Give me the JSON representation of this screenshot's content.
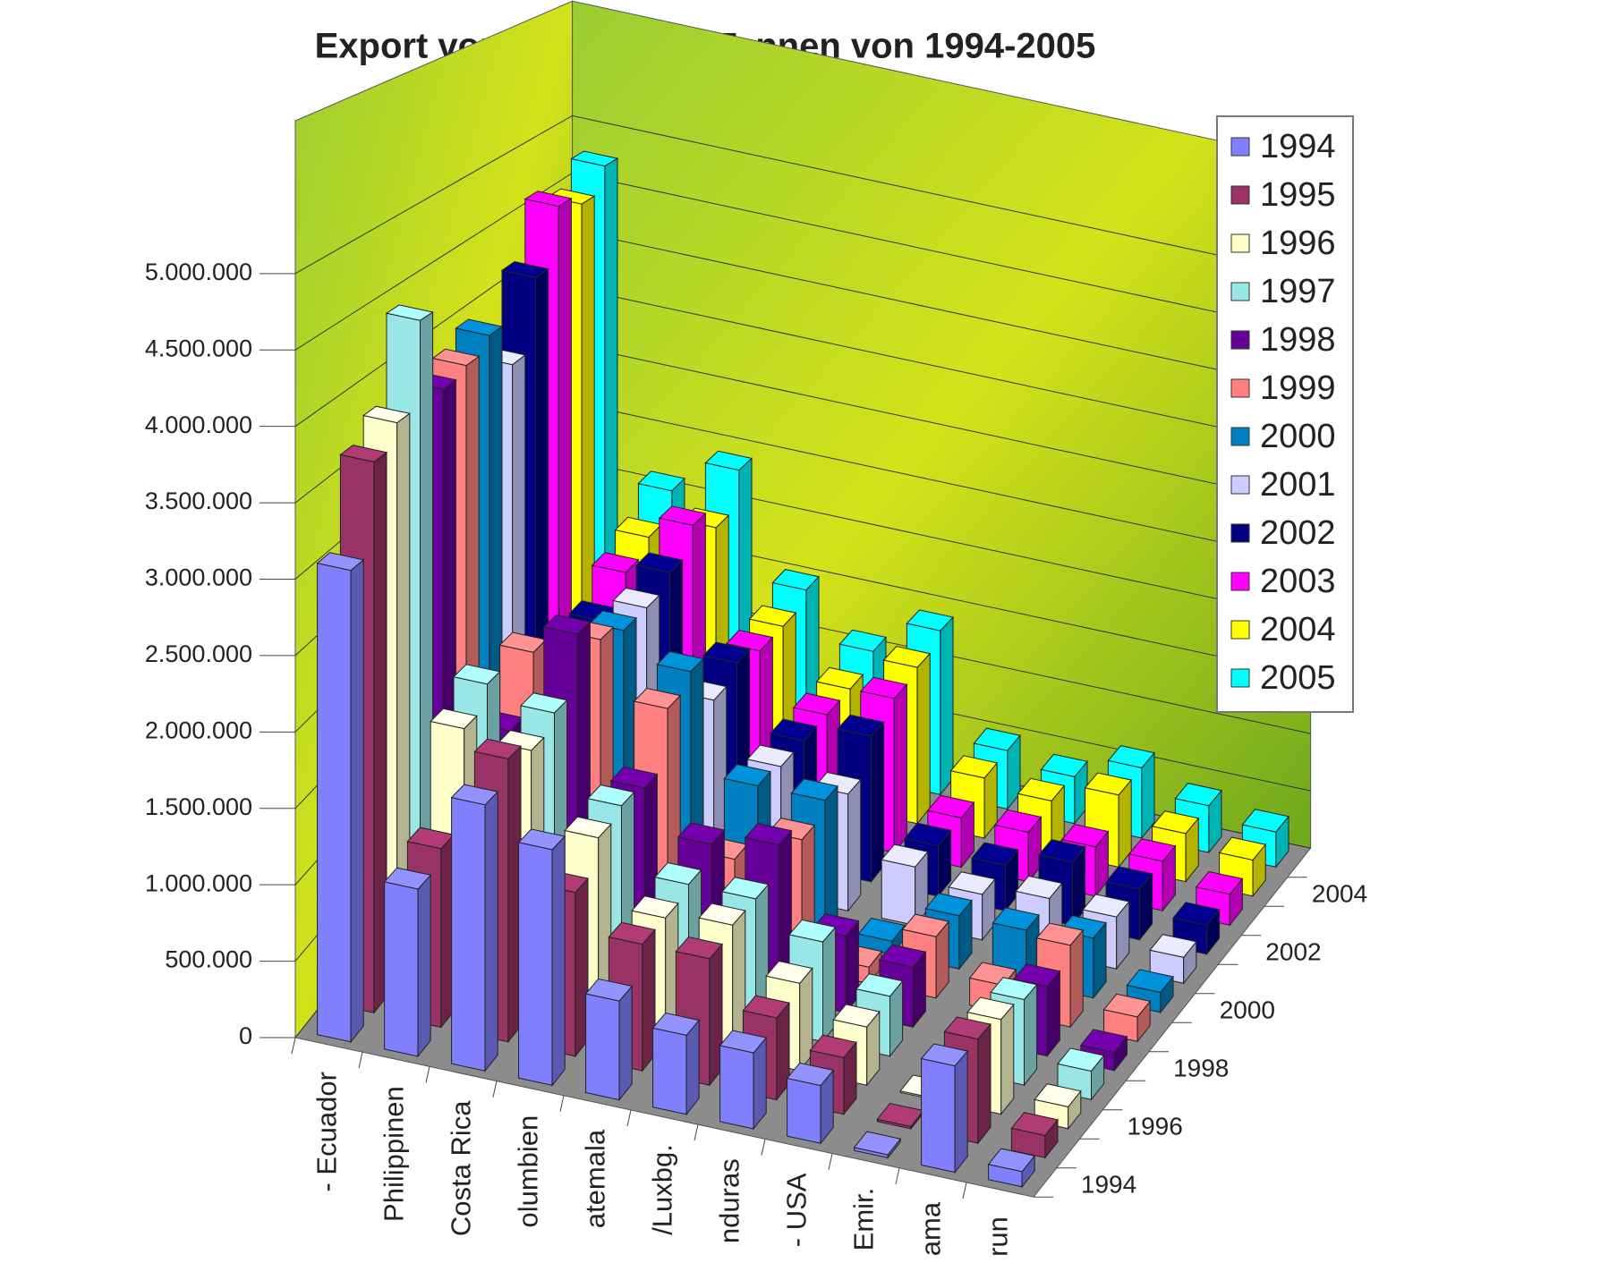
{
  "chart_data": {
    "type": "bar3d",
    "title": "Export von Bananen in Tonnen von 1994-2005",
    "categories": [
      "- Ecuador",
      "Philippinen",
      "Costa Rica",
      "olumbien",
      "atemala",
      "/Luxbg.",
      "nduras",
      "- USA",
      "Emir.",
      "ama",
      "run"
    ],
    "series": [
      {
        "name": "1994",
        "color": "#8080ff",
        "values": [
          3100000,
          1100000,
          1750000,
          1550000,
          650000,
          520000,
          500000,
          380000,
          20000,
          700000,
          100000
        ]
      },
      {
        "name": "1995",
        "color": "#993366",
        "values": [
          3700000,
          1200000,
          1900000,
          1100000,
          850000,
          850000,
          550000,
          380000,
          15000,
          700000,
          150000
        ]
      },
      {
        "name": "1996",
        "color": "#ffffcc",
        "values": [
          3850000,
          1850000,
          1800000,
          1300000,
          850000,
          900000,
          600000,
          400000,
          10000,
          650000,
          150000
        ]
      },
      {
        "name": "1997",
        "color": "#99e6e6",
        "values": [
          4450000,
          2000000,
          1900000,
          1350000,
          900000,
          900000,
          700000,
          420000,
          5000,
          600000,
          200000
        ]
      },
      {
        "name": "1998",
        "color": "#660099",
        "values": [
          3850000,
          1500000,
          2300000,
          1300000,
          1000000,
          1100000,
          550000,
          430000,
          5000,
          500000,
          130000
        ]
      },
      {
        "name": "1999",
        "color": "#ff8080",
        "values": [
          3900000,
          1900000,
          2100000,
          1700000,
          700000,
          950000,
          120000,
          450000,
          200000,
          600000,
          180000
        ]
      },
      {
        "name": "2000",
        "color": "#0080c0",
        "values": [
          4000000,
          1600000,
          2000000,
          1800000,
          1050000,
          1050000,
          100000,
          400000,
          400000,
          450000,
          150000
        ]
      },
      {
        "name": "2001",
        "color": "#ccccff",
        "values": [
          3650000,
          1500000,
          2000000,
          1400000,
          1000000,
          900000,
          450000,
          350000,
          430000,
          400000,
          200000
        ]
      },
      {
        "name": "2002",
        "color": "#000080",
        "values": [
          4200000,
          1600000,
          2100000,
          1500000,
          1000000,
          1150000,
          400000,
          360000,
          500000,
          400000,
          230000
        ]
      },
      {
        "name": "2003",
        "color": "#ff00ff",
        "values": [
          4650000,
          1800000,
          2300000,
          1400000,
          1000000,
          1250000,
          400000,
          400000,
          400000,
          400000,
          250000
        ]
      },
      {
        "name": "2004",
        "color": "#ffff00",
        "values": [
          4550000,
          1900000,
          2100000,
          1400000,
          1000000,
          1300000,
          500000,
          430000,
          600000,
          400000,
          300000
        ]
      },
      {
        "name": "2005",
        "color": "#00ffff",
        "values": [
          4750000,
          2100000,
          2400000,
          1500000,
          1100000,
          1400000,
          500000,
          400000,
          600000,
          400000,
          300000
        ]
      }
    ],
    "ylim": [
      0,
      6000000
    ],
    "yticks": [
      {
        "value": 0,
        "label": "0"
      },
      {
        "value": 500000,
        "label": "500.000"
      },
      {
        "value": 1000000,
        "label": "1.000.000"
      },
      {
        "value": 1500000,
        "label": "1.500.000"
      },
      {
        "value": 2000000,
        "label": "2.000.000"
      },
      {
        "value": 2500000,
        "label": "2.500.000"
      },
      {
        "value": 3000000,
        "label": "3.000.000"
      },
      {
        "value": 3500000,
        "label": "3.500.000"
      },
      {
        "value": 4000000,
        "label": "4.000.000"
      },
      {
        "value": 4500000,
        "label": "4.500.000"
      },
      {
        "value": 5000000,
        "label": "5.000.000"
      }
    ],
    "grid": true,
    "legend": "top-right"
  }
}
